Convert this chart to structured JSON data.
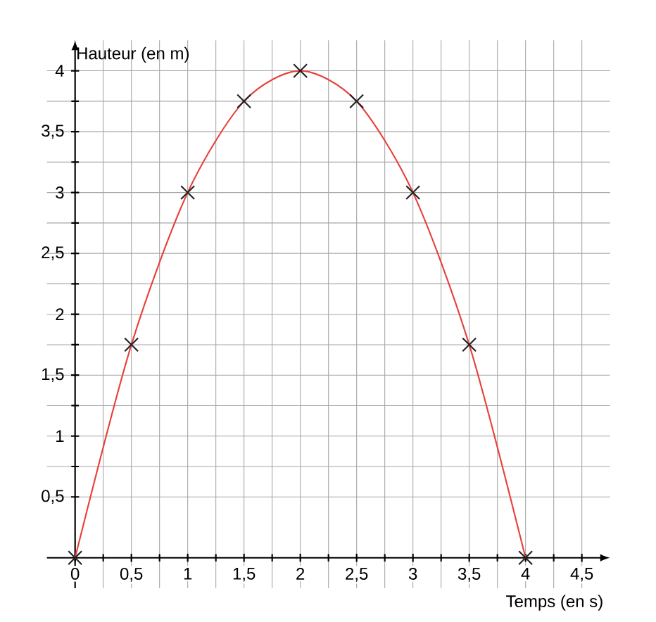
{
  "chart_data": {
    "type": "line",
    "xlabel": "Temps (en s)",
    "ylabel": "Hauteur (en m)",
    "x": [
      0,
      0.5,
      1,
      1.5,
      2,
      2.5,
      3,
      3.5,
      4
    ],
    "series": [
      {
        "color": "#e8413a",
        "marker": "none",
        "line_style": "solid",
        "values": [
          0,
          1.75,
          3,
          3.75,
          4,
          3.75,
          3,
          1.75,
          0
        ]
      },
      {
        "type": "scatter",
        "color": "#222222",
        "marker": "cross",
        "values": [
          0,
          1.75,
          3,
          3.75,
          4,
          3.75,
          3,
          1.75,
          0
        ]
      }
    ],
    "xlim": [
      -0.25,
      4.75
    ],
    "ylim": [
      -0.25,
      4.25
    ],
    "xticks": [
      0,
      {
        "value": 0.5,
        "label": "0,5"
      },
      1,
      {
        "value": 1.5,
        "label": "1,5"
      },
      2,
      {
        "value": 2.5,
        "label": "2,5"
      },
      3,
      {
        "value": 3.5,
        "label": "3,5"
      },
      4,
      {
        "value": 4.5,
        "label": "4,5"
      }
    ],
    "yticks": [
      {
        "value": 0.5,
        "label": "0,5"
      },
      1,
      {
        "value": 1.5,
        "label": "1,5"
      },
      2,
      {
        "value": 2.5,
        "label": "2,5"
      },
      3,
      {
        "value": 3.5,
        "label": "3,5"
      },
      4
    ],
    "grid": true
  }
}
